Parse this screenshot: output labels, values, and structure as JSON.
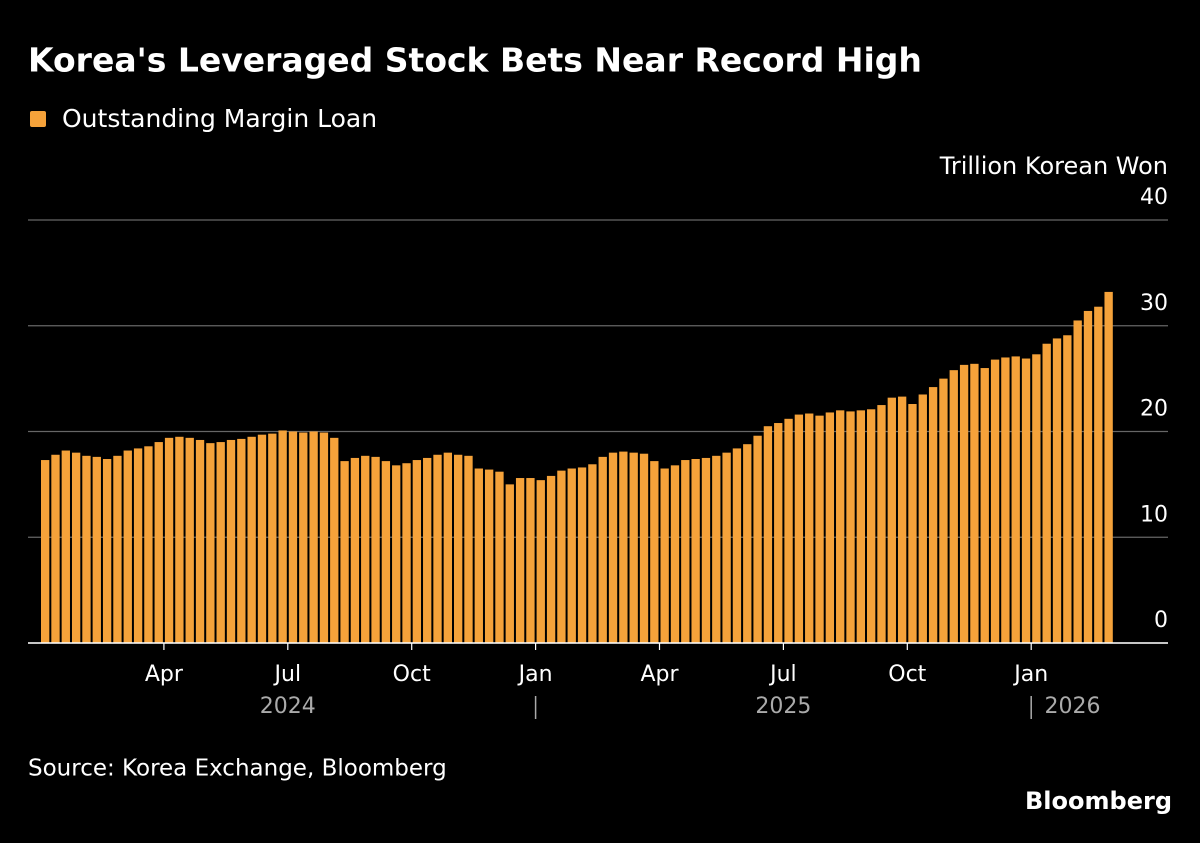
{
  "chart_data": {
    "type": "bar",
    "title": "Korea's Leveraged Stock Bets Near Record High",
    "legend": "Outstanding Margin Loan",
    "y_axis_label": "Trillion Korean Won",
    "source": "Source: Korea Exchange, Bloomberg",
    "brand": "Bloomberg",
    "color": "#f5a23a",
    "ylim": [
      0,
      40
    ],
    "yticks": [
      0,
      10,
      20,
      30,
      40
    ],
    "grid": true,
    "x": [
      "2024-01",
      "2024-01",
      "2024-01",
      "2024-01",
      "2024-02",
      "2024-02",
      "2024-02",
      "2024-02",
      "2024-03",
      "2024-03",
      "2024-03",
      "2024-03",
      "2024-04",
      "2024-04",
      "2024-04",
      "2024-04",
      "2024-05",
      "2024-05",
      "2024-05",
      "2024-05",
      "2024-06",
      "2024-06",
      "2024-06",
      "2024-06",
      "2024-07",
      "2024-07",
      "2024-07",
      "2024-07",
      "2024-08",
      "2024-08",
      "2024-08",
      "2024-08",
      "2024-09",
      "2024-09",
      "2024-09",
      "2024-09",
      "2024-10",
      "2024-10",
      "2024-10",
      "2024-10",
      "2024-11",
      "2024-11",
      "2024-11",
      "2024-11",
      "2024-12",
      "2024-12",
      "2024-12",
      "2024-12",
      "2025-01",
      "2025-01",
      "2025-01",
      "2025-01",
      "2025-02",
      "2025-02",
      "2025-02",
      "2025-02",
      "2025-03",
      "2025-03",
      "2025-03",
      "2025-03",
      "2025-04",
      "2025-04",
      "2025-04",
      "2025-04",
      "2025-05",
      "2025-05",
      "2025-05",
      "2025-05",
      "2025-06",
      "2025-06",
      "2025-06",
      "2025-06",
      "2025-07",
      "2025-07",
      "2025-07",
      "2025-07",
      "2025-08",
      "2025-08",
      "2025-08",
      "2025-08",
      "2025-09",
      "2025-09",
      "2025-09",
      "2025-09",
      "2025-10",
      "2025-10",
      "2025-10",
      "2025-10",
      "2025-11",
      "2025-11",
      "2025-11",
      "2025-11",
      "2025-12",
      "2025-12",
      "2025-12",
      "2025-12",
      "2026-01",
      "2026-01",
      "2026-01",
      "2026-01",
      "2026-02",
      "2026-02",
      "2026-02",
      "2026-02"
    ],
    "values": [
      17.3,
      17.8,
      18.2,
      18.0,
      17.7,
      17.6,
      17.4,
      17.7,
      18.2,
      18.4,
      18.6,
      19.0,
      19.4,
      19.5,
      19.4,
      19.2,
      18.9,
      19.0,
      19.2,
      19.3,
      19.5,
      19.7,
      19.8,
      20.1,
      20.0,
      19.9,
      20.0,
      19.9,
      19.4,
      17.2,
      17.5,
      17.7,
      17.6,
      17.2,
      16.8,
      17.0,
      17.3,
      17.5,
      17.8,
      18.0,
      17.8,
      17.7,
      16.5,
      16.4,
      16.2,
      15.0,
      15.6,
      15.6,
      15.4,
      15.8,
      16.3,
      16.5,
      16.6,
      16.9,
      17.6,
      18.0,
      18.1,
      18.0,
      17.9,
      17.2,
      16.5,
      16.8,
      17.3,
      17.4,
      17.5,
      17.7,
      18.0,
      18.4,
      18.8,
      19.6,
      20.5,
      20.8,
      21.2,
      21.6,
      21.7,
      21.5,
      21.8,
      22.0,
      21.9,
      22.0,
      22.1,
      22.5,
      23.2,
      23.3,
      22.6,
      23.5,
      24.2,
      25.0,
      25.8,
      26.3,
      26.4,
      26.0,
      26.8,
      27.0,
      27.1,
      26.9,
      27.3,
      28.3,
      28.8,
      29.1,
      30.5,
      31.4,
      31.8,
      33.2
    ],
    "xticks": [
      {
        "value": "2024-04",
        "label": "Apr"
      },
      {
        "value": "2024-07",
        "label": "Jul"
      },
      {
        "value": "2024-10",
        "label": "Oct"
      },
      {
        "value": "2025-01",
        "label": "Jan"
      },
      {
        "value": "2025-04",
        "label": "Apr"
      },
      {
        "value": "2025-07",
        "label": "Jul"
      },
      {
        "value": "2025-10",
        "label": "Oct"
      },
      {
        "value": "2026-01",
        "label": "Jan"
      }
    ],
    "year_ticks": [
      2024,
      2025,
      2026
    ]
  }
}
